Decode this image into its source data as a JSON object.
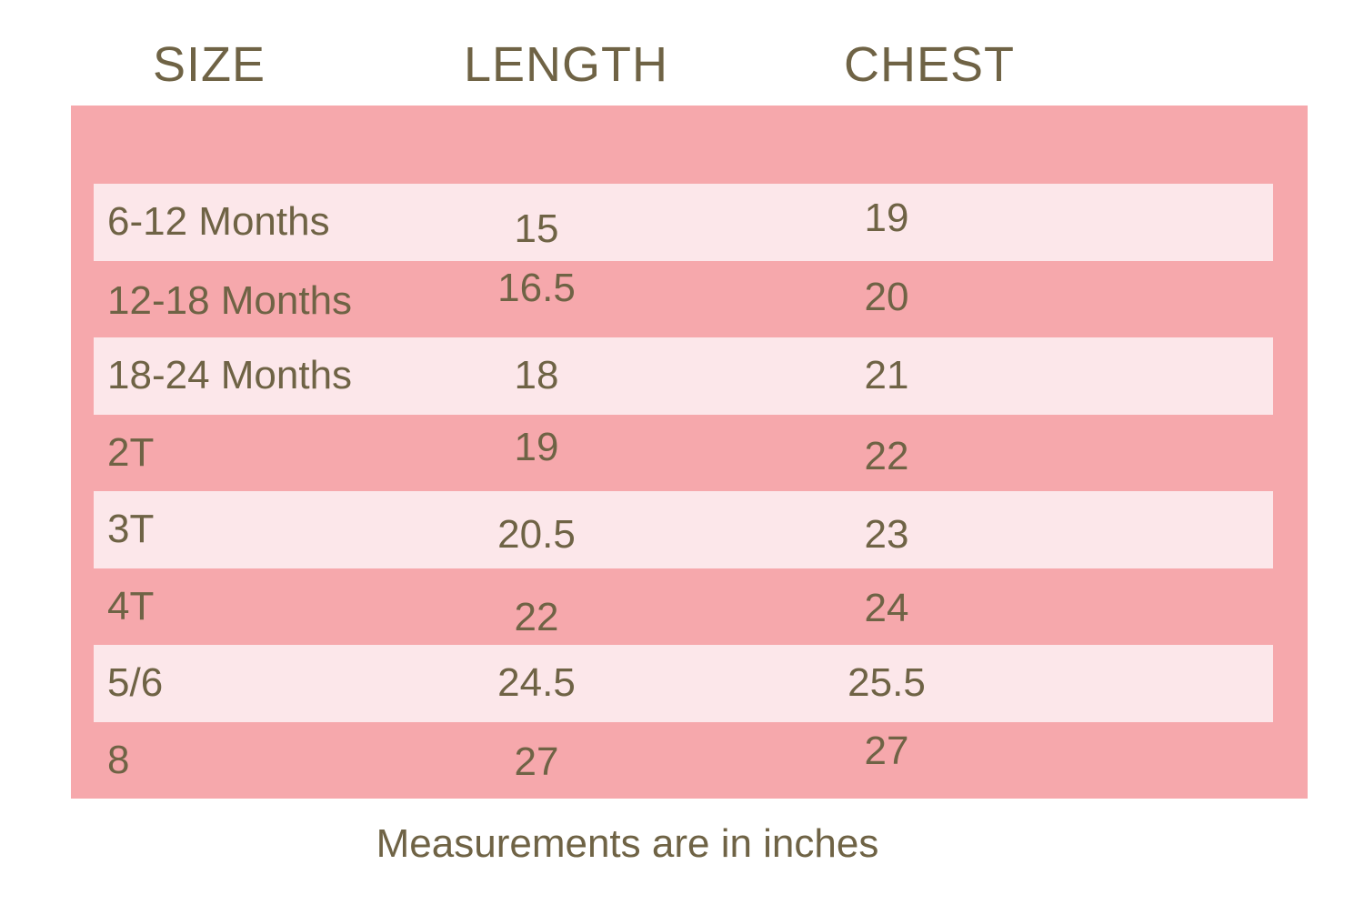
{
  "colors": {
    "background": "#ffffff",
    "panel": "#f6a8ac",
    "stripe": "#fce7ea",
    "text": "#6f6345"
  },
  "size_chart": {
    "columns": [
      {
        "label": "SIZE"
      },
      {
        "label": "LENGTH"
      },
      {
        "label": "CHEST"
      }
    ],
    "rows": [
      {
        "size": "6-12 Months",
        "length": "15",
        "chest": "19"
      },
      {
        "size": "12-18 Months",
        "length": "16.5",
        "chest": "20"
      },
      {
        "size": "18-24 Months",
        "length": "18",
        "chest": "21"
      },
      {
        "size": "2T",
        "length": "19",
        "chest": "22"
      },
      {
        "size": "3T",
        "length": "20.5",
        "chest": "23"
      },
      {
        "size": "4T",
        "length": "22",
        "chest": "24"
      },
      {
        "size": "5/6",
        "length": "24.5",
        "chest": "25.5"
      },
      {
        "size": "8",
        "length": "27",
        "chest": "27"
      }
    ],
    "footnote": "Measurements are in inches"
  }
}
